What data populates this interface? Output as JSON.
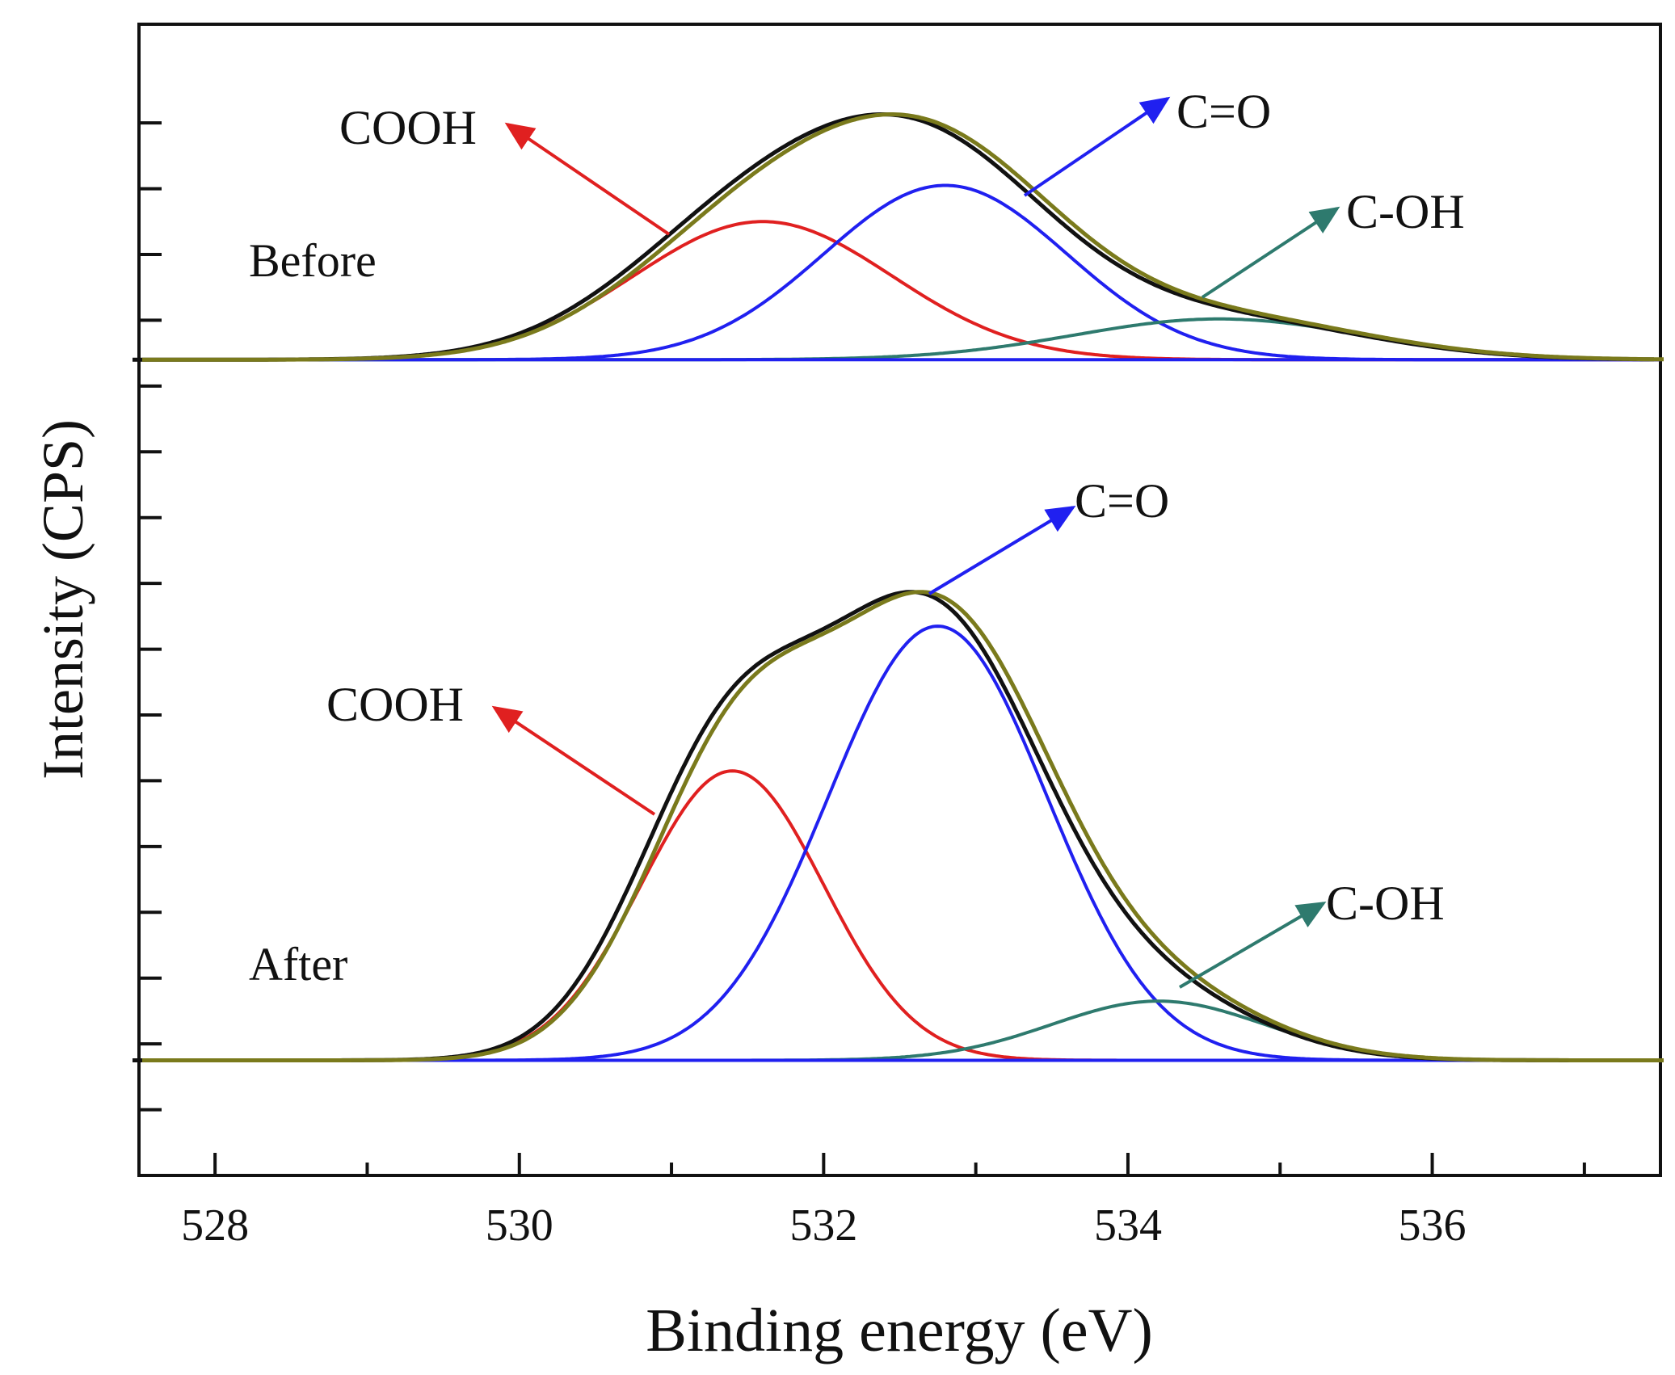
{
  "chart_data": {
    "type": "line",
    "title": "",
    "xlabel": "Binding energy (eV)",
    "ylabel": "Intensity (CPS)",
    "xlim": [
      527.5,
      537.5
    ],
    "ylim": [
      0,
      17.5
    ],
    "x_ticks": [
      528,
      530,
      532,
      534,
      536
    ],
    "x_minor_ticks": [
      529,
      531,
      533,
      535,
      537
    ],
    "y_tick_count": 16,
    "grid": false,
    "colors": {
      "envelope": "#111111",
      "fit": "#7a7a1c",
      "COOH": "#e02020",
      "C=O": "#2020f0",
      "C-OH": "#2e7a6e"
    },
    "panels": [
      {
        "label": "Before",
        "baseline": 12.4,
        "peaks": [
          {
            "name": "COOH",
            "center": 531.6,
            "height": 2.1,
            "sigma": 0.85
          },
          {
            "name": "C=O",
            "center": 532.8,
            "height": 2.65,
            "sigma": 0.8
          },
          {
            "name": "C-OH",
            "center": 534.6,
            "height": 0.62,
            "sigma": 0.95
          }
        ],
        "annotations": [
          {
            "text": "COOH",
            "target": "COOH"
          },
          {
            "text": "C=O",
            "target": "C=O"
          },
          {
            "text": "C-OH",
            "target": "C-OH"
          }
        ]
      },
      {
        "label": "After",
        "baseline": 1.75,
        "peaks": [
          {
            "name": "COOH",
            "center": 531.4,
            "height": 4.4,
            "sigma": 0.6
          },
          {
            "name": "C=O",
            "center": 532.75,
            "height": 6.6,
            "sigma": 0.72
          },
          {
            "name": "C-OH",
            "center": 534.2,
            "height": 0.9,
            "sigma": 0.7
          }
        ],
        "annotations": [
          {
            "text": "COOH",
            "target": "COOH"
          },
          {
            "text": "C=O",
            "target": "C=O"
          },
          {
            "text": "C-OH",
            "target": "C-OH"
          }
        ]
      }
    ]
  }
}
